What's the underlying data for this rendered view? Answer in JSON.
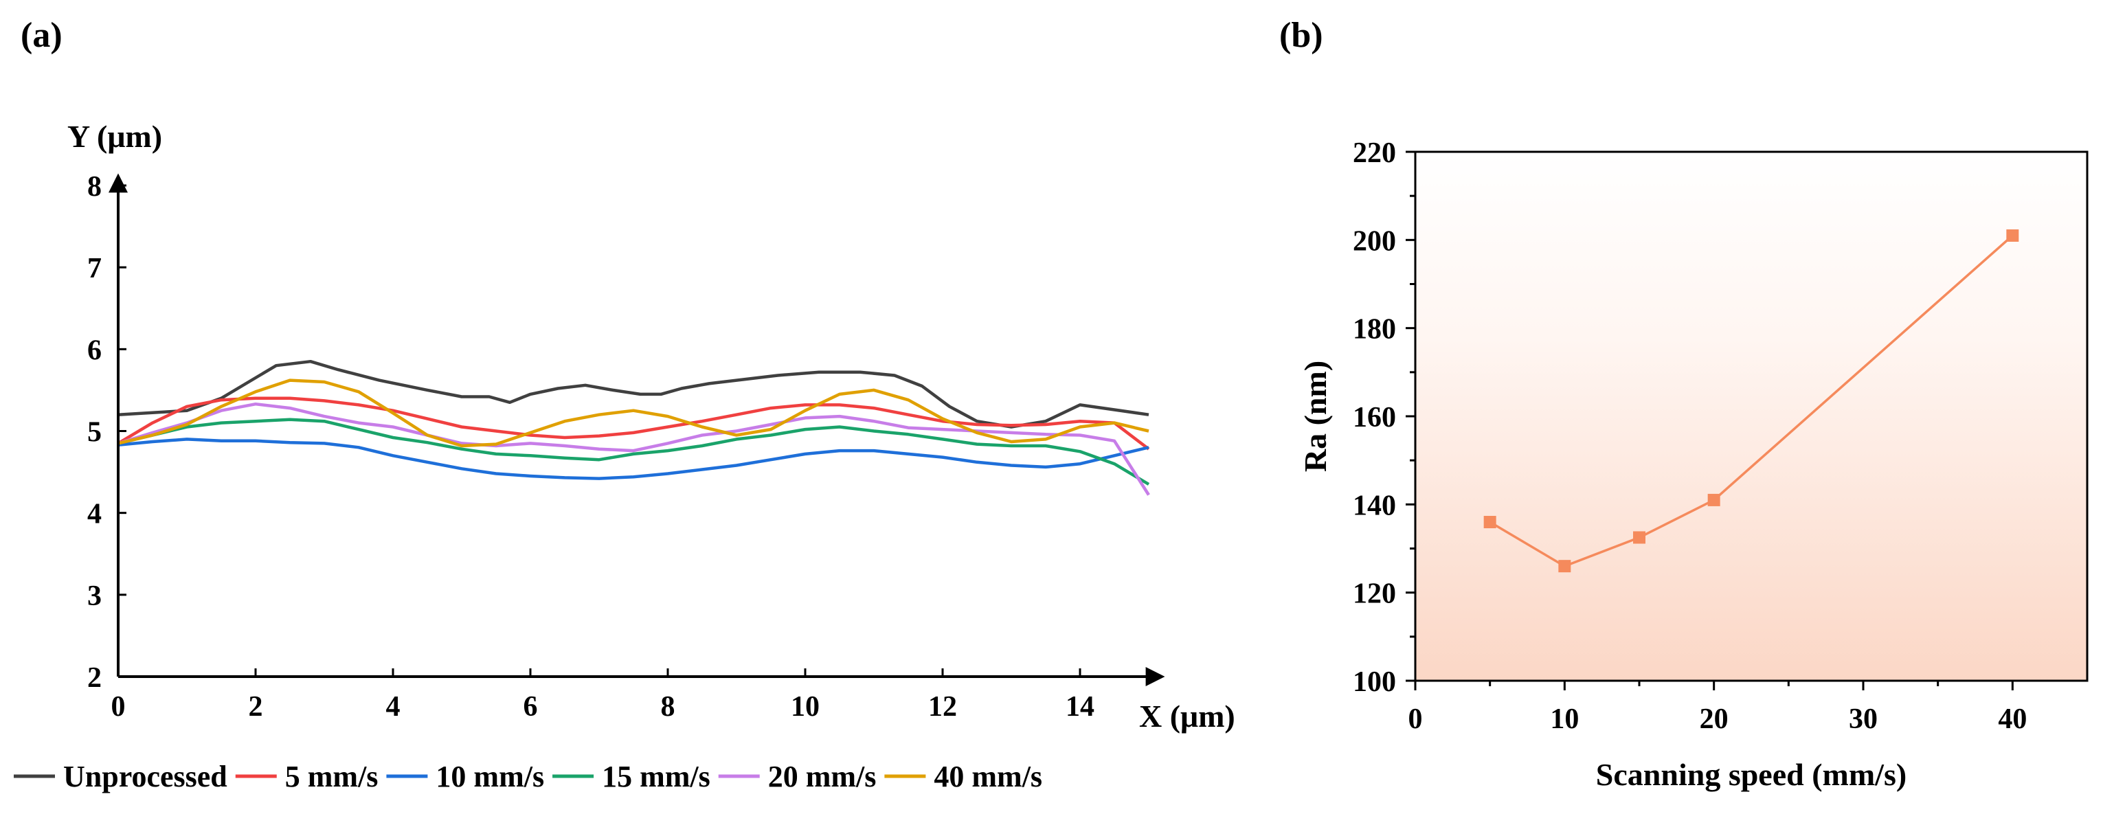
{
  "panels": {
    "a": {
      "label": "(a)"
    },
    "b": {
      "label": "(b)"
    }
  },
  "chart_data": [
    {
      "type": "line",
      "panel": "(a)",
      "xlabel": "X (μm)",
      "ylabel": "Y (μm)",
      "xlim": [
        0,
        15
      ],
      "ylim": [
        2,
        8
      ],
      "xticks": [
        0,
        2,
        4,
        6,
        8,
        10,
        12,
        14
      ],
      "yticks": [
        2,
        3,
        4,
        5,
        6,
        7,
        8
      ],
      "legend_position": "bottom",
      "series": [
        {
          "name": "Unprocessed",
          "color": "#404040",
          "x": [
            0,
            1,
            1.5,
            2,
            2.3,
            2.8,
            3.2,
            3.8,
            4.5,
            5,
            5.4,
            5.7,
            6.0,
            6.4,
            6.8,
            7.2,
            7.6,
            7.9,
            8.2,
            8.6,
            9,
            9.6,
            10.2,
            10.8,
            11.3,
            11.7,
            12.1,
            12.5,
            13,
            13.5,
            14,
            14.5,
            15
          ],
          "values": [
            5.2,
            5.25,
            5.4,
            5.65,
            5.8,
            5.85,
            5.75,
            5.62,
            5.5,
            5.42,
            5.42,
            5.35,
            5.45,
            5.52,
            5.56,
            5.5,
            5.45,
            5.45,
            5.52,
            5.58,
            5.62,
            5.68,
            5.72,
            5.72,
            5.68,
            5.55,
            5.3,
            5.12,
            5.05,
            5.12,
            5.32,
            5.26,
            5.2
          ]
        },
        {
          "name": "5 mm/s",
          "color": "#f04040",
          "x": [
            0,
            0.5,
            1,
            1.5,
            2,
            2.5,
            3,
            3.5,
            4,
            4.5,
            5,
            5.5,
            6,
            6.5,
            7,
            7.5,
            8,
            8.5,
            9,
            9.5,
            10,
            10.5,
            11,
            11.5,
            12,
            12.5,
            13,
            13.5,
            14,
            14.5,
            15
          ],
          "values": [
            4.85,
            5.1,
            5.3,
            5.38,
            5.4,
            5.4,
            5.37,
            5.32,
            5.25,
            5.15,
            5.05,
            5.0,
            4.95,
            4.92,
            4.94,
            4.98,
            5.05,
            5.12,
            5.2,
            5.28,
            5.32,
            5.32,
            5.28,
            5.2,
            5.12,
            5.08,
            5.07,
            5.08,
            5.12,
            5.1,
            4.78
          ]
        },
        {
          "name": "10 mm/s",
          "color": "#1e6fd9",
          "x": [
            0,
            0.5,
            1,
            1.5,
            2,
            2.5,
            3,
            3.5,
            4,
            4.5,
            5,
            5.5,
            6,
            6.5,
            7,
            7.5,
            8,
            8.5,
            9,
            9.5,
            10,
            10.5,
            11,
            11.5,
            12,
            12.5,
            13,
            13.5,
            14,
            14.5,
            15
          ],
          "values": [
            4.83,
            4.87,
            4.9,
            4.88,
            4.88,
            4.86,
            4.85,
            4.8,
            4.7,
            4.62,
            4.54,
            4.48,
            4.45,
            4.43,
            4.42,
            4.44,
            4.48,
            4.53,
            4.58,
            4.65,
            4.72,
            4.76,
            4.76,
            4.72,
            4.68,
            4.62,
            4.58,
            4.56,
            4.6,
            4.7,
            4.8
          ]
        },
        {
          "name": "15 mm/s",
          "color": "#1aa36a",
          "x": [
            0,
            0.5,
            1,
            1.5,
            2,
            2.5,
            3,
            3.5,
            4,
            4.5,
            5,
            5.5,
            6,
            6.5,
            7,
            7.5,
            8,
            8.5,
            9,
            9.5,
            10,
            10.5,
            11,
            11.5,
            12,
            12.5,
            13,
            13.5,
            14,
            14.5,
            15
          ],
          "values": [
            4.85,
            4.95,
            5.05,
            5.1,
            5.12,
            5.14,
            5.12,
            5.02,
            4.92,
            4.86,
            4.78,
            4.72,
            4.7,
            4.67,
            4.65,
            4.72,
            4.76,
            4.82,
            4.9,
            4.95,
            5.02,
            5.05,
            5.0,
            4.96,
            4.9,
            4.84,
            4.82,
            4.82,
            4.75,
            4.6,
            4.35
          ]
        },
        {
          "name": "20 mm/s",
          "color": "#c77de8",
          "x": [
            0,
            0.5,
            1,
            1.5,
            2,
            2.5,
            3,
            3.5,
            4,
            4.5,
            5,
            5.5,
            6,
            6.5,
            7,
            7.5,
            8,
            8.5,
            9,
            9.5,
            10,
            10.5,
            11,
            11.5,
            12,
            12.5,
            13,
            13.5,
            14,
            14.5,
            15
          ],
          "values": [
            4.85,
            4.98,
            5.1,
            5.25,
            5.33,
            5.28,
            5.18,
            5.1,
            5.05,
            4.95,
            4.85,
            4.82,
            4.85,
            4.82,
            4.78,
            4.76,
            4.85,
            4.95,
            5.0,
            5.08,
            5.16,
            5.18,
            5.12,
            5.04,
            5.02,
            5.0,
            4.98,
            4.96,
            4.95,
            4.88,
            4.22
          ]
        },
        {
          "name": "40 mm/s",
          "color": "#e0a000",
          "x": [
            0,
            0.5,
            1,
            1.5,
            2,
            2.5,
            3,
            3.5,
            4,
            4.5,
            5,
            5.5,
            6,
            6.5,
            7,
            7.5,
            8,
            8.5,
            9,
            9.5,
            10,
            10.5,
            11,
            11.5,
            12,
            12.5,
            13,
            13.5,
            14,
            14.5,
            15
          ],
          "values": [
            4.85,
            4.95,
            5.08,
            5.3,
            5.48,
            5.62,
            5.6,
            5.48,
            5.22,
            4.95,
            4.82,
            4.84,
            4.98,
            5.12,
            5.2,
            5.25,
            5.18,
            5.05,
            4.95,
            5.02,
            5.25,
            5.45,
            5.5,
            5.38,
            5.15,
            4.98,
            4.87,
            4.9,
            5.05,
            5.1,
            5.0
          ]
        }
      ]
    },
    {
      "type": "line",
      "panel": "(b)",
      "xlabel": "Scanning speed (mm/s)",
      "ylabel": "Ra (nm)",
      "xlim": [
        0,
        45
      ],
      "ylim": [
        100,
        220
      ],
      "xticks": [
        0,
        10,
        20,
        30,
        40
      ],
      "yticks": [
        100,
        120,
        140,
        160,
        180,
        200,
        220
      ],
      "marker": "square",
      "color": "#f58a5c",
      "background": "gradient fill, light salmon toward bottom",
      "x": [
        5,
        10,
        15,
        20,
        40
      ],
      "values": [
        136,
        126,
        132.5,
        141,
        201
      ]
    }
  ]
}
